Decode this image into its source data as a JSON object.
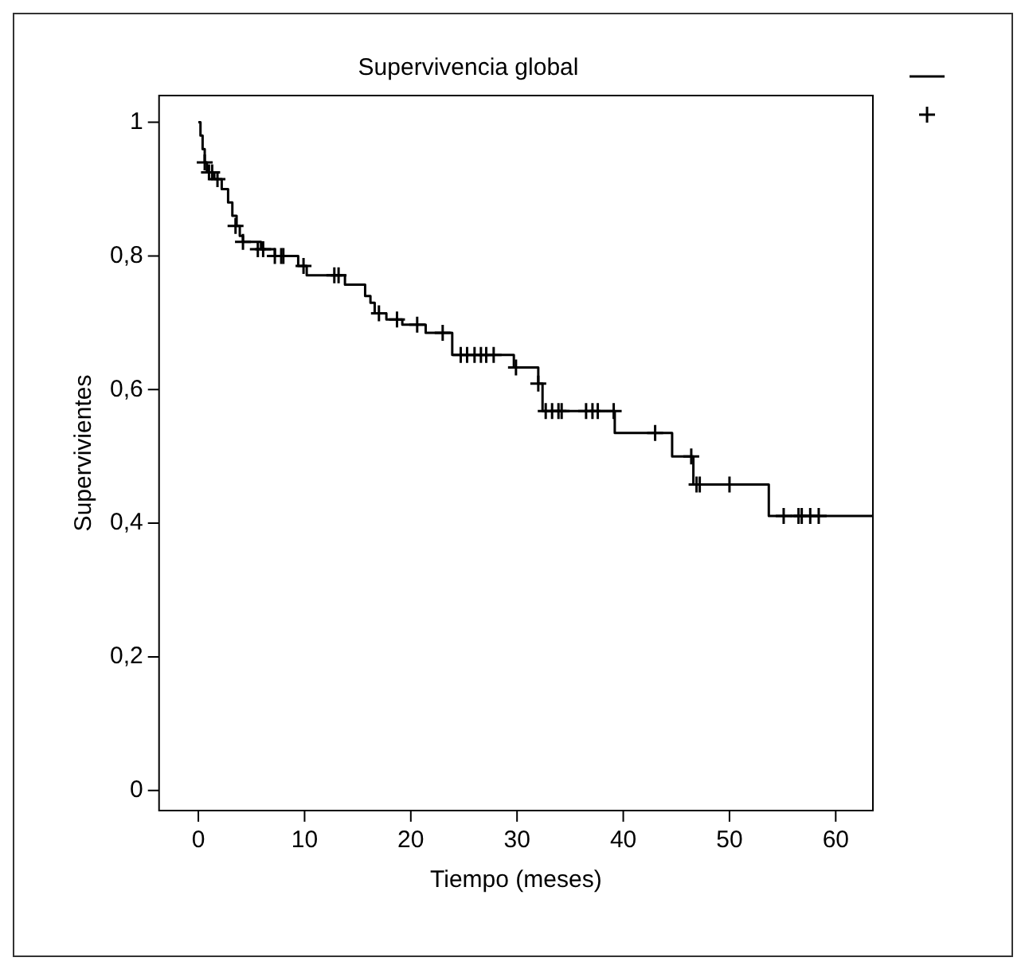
{
  "chart_data": {
    "type": "step",
    "title": "Supervivencia global",
    "xlabel": "Tiempo (meses)",
    "ylabel": "Supervivientes",
    "xlim": [
      -3.7,
      63.5
    ],
    "xticks": [
      0,
      10,
      20,
      30,
      40,
      50,
      60
    ],
    "ylim": [
      -0.03,
      1.04
    ],
    "yticks": [
      {
        "value": 0,
        "label": "0"
      },
      {
        "value": 0.2,
        "label": "0,2"
      },
      {
        "value": 0.4,
        "label": "0,4"
      },
      {
        "value": 0.6,
        "label": "0,6"
      },
      {
        "value": 0.8,
        "label": "0,8"
      },
      {
        "value": 1,
        "label": "1"
      }
    ],
    "grid": false,
    "series": [
      {
        "color": "#000000",
        "marker": "none",
        "x": [
          0,
          0.2,
          0.4,
          0.6,
          0.8,
          1.5,
          2.2,
          2.8,
          3.2,
          3.6,
          3.9,
          4.2,
          5.9,
          7.2,
          9.4,
          10.2,
          13.8,
          15.7,
          16.2,
          16.6,
          17.7,
          19.2,
          21.4,
          23.9,
          29.7,
          32.0,
          32.4,
          39.2,
          44.6,
          46.6,
          53.7,
          63.5
        ],
        "values": [
          1,
          0.98,
          0.96,
          0.94,
          0.925,
          0.915,
          0.9,
          0.88,
          0.86,
          0.845,
          0.83,
          0.821,
          0.81,
          0.8,
          0.785,
          0.771,
          0.757,
          0.74,
          0.73,
          0.714,
          0.705,
          0.697,
          0.685,
          0.652,
          0.633,
          0.609,
          0.568,
          0.535,
          0.5,
          0.458,
          0.411,
          0.411
        ]
      },
      {
        "type": "scatter",
        "color": "#000000",
        "marker": "cross",
        "x": [
          0.6,
          1.0,
          1.3,
          1.8,
          3.5,
          4.2,
          5.6,
          6.1,
          7.2,
          7.8,
          8.0,
          9.9,
          12.8,
          13.2,
          17.0,
          18.7,
          20.6,
          23.0,
          24.7,
          25.3,
          26.0,
          26.6,
          27.1,
          27.8,
          29.9,
          32.0,
          32.7,
          33.3,
          33.9,
          34.2,
          36.5,
          37.1,
          37.6,
          39.1,
          43.0,
          46.4,
          46.9,
          47.2,
          50.0,
          55.1,
          56.5,
          56.8,
          57.6,
          58.4
        ],
        "values": [
          0.94,
          0.925,
          0.925,
          0.915,
          0.845,
          0.821,
          0.81,
          0.81,
          0.8,
          0.8,
          0.8,
          0.785,
          0.771,
          0.771,
          0.714,
          0.705,
          0.697,
          0.685,
          0.652,
          0.652,
          0.652,
          0.652,
          0.652,
          0.652,
          0.633,
          0.609,
          0.568,
          0.568,
          0.568,
          0.568,
          0.568,
          0.568,
          0.568,
          0.568,
          0.535,
          0.5,
          0.458,
          0.458,
          0.458,
          0.411,
          0.411,
          0.411,
          0.411,
          0.411
        ]
      }
    ]
  }
}
